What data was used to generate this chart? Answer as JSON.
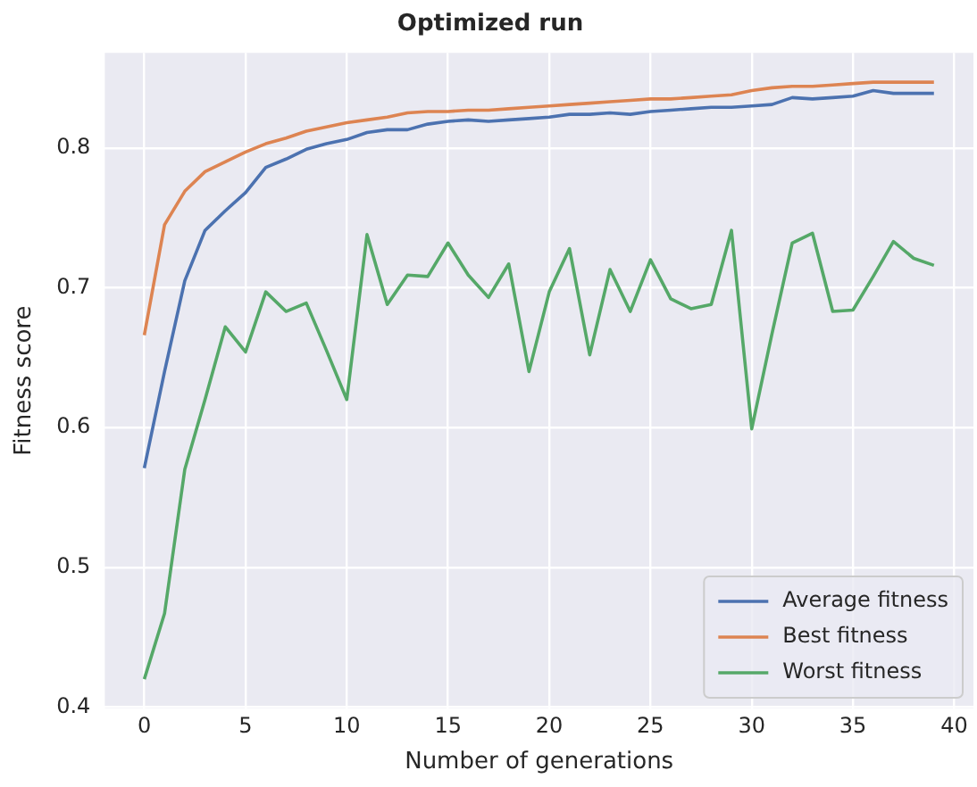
{
  "chart_data": {
    "type": "line",
    "title": "Optimized run",
    "xlabel": "Number of generations",
    "ylabel": "Fitness score",
    "x": [
      0,
      1,
      2,
      3,
      4,
      5,
      6,
      7,
      8,
      9,
      10,
      11,
      12,
      13,
      14,
      15,
      16,
      17,
      18,
      19,
      20,
      21,
      22,
      23,
      24,
      25,
      26,
      27,
      28,
      29,
      30,
      31,
      32,
      33,
      34,
      35,
      36,
      37,
      38,
      39
    ],
    "xlim": [
      -1.95,
      40.95
    ],
    "xticks": [
      0,
      5,
      10,
      15,
      20,
      25,
      30,
      35,
      40
    ],
    "ylim": [
      0.399,
      0.868
    ],
    "yticks": [
      0.4,
      0.5,
      0.6,
      0.7,
      0.8
    ],
    "grid": true,
    "legend": "bottom right",
    "marker": "none",
    "line_style": "solid",
    "series": [
      {
        "name": "Average fitness",
        "color": "#4c72b0",
        "values": [
          0.571,
          0.64,
          0.705,
          0.741,
          0.755,
          0.768,
          0.786,
          0.792,
          0.799,
          0.803,
          0.806,
          0.811,
          0.813,
          0.813,
          0.817,
          0.819,
          0.82,
          0.819,
          0.82,
          0.821,
          0.822,
          0.824,
          0.824,
          0.825,
          0.824,
          0.826,
          0.827,
          0.828,
          0.829,
          0.829,
          0.83,
          0.831,
          0.836,
          0.835,
          0.836,
          0.837,
          0.841,
          0.839,
          0.839,
          0.839
        ]
      },
      {
        "name": "Best fitness",
        "color": "#dd8452",
        "values": [
          0.666,
          0.745,
          0.769,
          0.783,
          0.79,
          0.797,
          0.803,
          0.807,
          0.812,
          0.815,
          0.818,
          0.82,
          0.822,
          0.825,
          0.826,
          0.826,
          0.827,
          0.827,
          0.828,
          0.829,
          0.83,
          0.831,
          0.832,
          0.833,
          0.834,
          0.835,
          0.835,
          0.836,
          0.837,
          0.838,
          0.841,
          0.843,
          0.844,
          0.844,
          0.845,
          0.846,
          0.847,
          0.847,
          0.847,
          0.847
        ]
      },
      {
        "name": "Worst fitness",
        "color": "#55a868",
        "values": [
          0.42,
          0.467,
          0.57,
          0.62,
          0.672,
          0.654,
          0.697,
          0.683,
          0.689,
          0.655,
          0.62,
          0.738,
          0.688,
          0.709,
          0.708,
          0.732,
          0.709,
          0.693,
          0.717,
          0.64,
          0.697,
          0.728,
          0.652,
          0.713,
          0.683,
          0.72,
          0.692,
          0.685,
          0.688,
          0.741,
          0.599,
          0.667,
          0.732,
          0.739,
          0.683,
          0.684,
          0.708,
          0.733,
          0.721,
          0.716
        ]
      }
    ]
  }
}
